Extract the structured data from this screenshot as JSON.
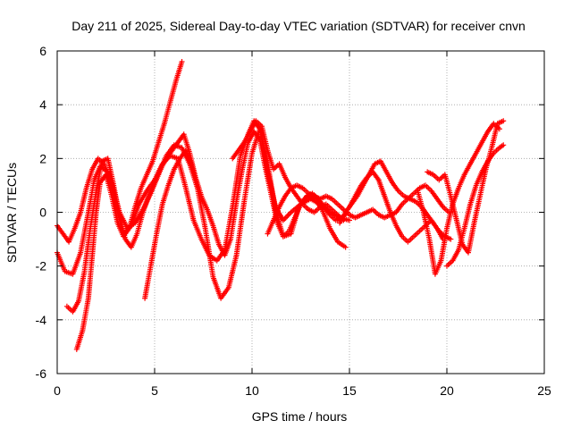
{
  "chart_data": {
    "type": "scatter",
    "title": "Day 211 of 2025, Sidereal Day-to-day VTEC variation (SDTVAR) for receiver cnvn",
    "xlabel": "GPS time / hours",
    "ylabel": "SDTVAR / TECUs",
    "xlim": [
      0,
      25
    ],
    "ylim": [
      -6,
      6
    ],
    "xticks": [
      "0",
      "5",
      "10",
      "15",
      "20",
      "25"
    ],
    "yticks": [
      "-6",
      "-4",
      "-2",
      "0",
      "2",
      "4",
      "6"
    ],
    "grid": true,
    "legend": "none",
    "marker": "plus",
    "series": [
      {
        "color": "#ff0000",
        "x": [
          0.0,
          0.4,
          0.8,
          1.2,
          1.6,
          1.9,
          2.2,
          2.6,
          3.0,
          3.4,
          3.8,
          4.2,
          4.6,
          5.0,
          5.4,
          5.8,
          6.2,
          6.6,
          7.0,
          7.4,
          7.8,
          8.2,
          8.6,
          9.0,
          9.4,
          9.8,
          10.1,
          10.4,
          10.8,
          11.2,
          11.6,
          12.0,
          12.5,
          13.0,
          13.5,
          14.0,
          14.5,
          15.0
        ],
        "y": [
          -1.5,
          -2.2,
          -2.3,
          -1.5,
          0.0,
          1.2,
          1.7,
          1.5,
          0.3,
          -0.8,
          -0.5,
          0.3,
          0.8,
          1.2,
          1.8,
          2.1,
          2.0,
          0.9,
          -0.3,
          -1.0,
          -1.6,
          -1.8,
          -1.4,
          0.2,
          2.1,
          2.9,
          3.4,
          3.1,
          1.5,
          0.2,
          -0.3,
          0.0,
          0.3,
          0.5,
          0.3,
          0.0,
          -0.2,
          -0.3
        ]
      },
      {
        "color": "#ff0000",
        "x": [
          0.0,
          0.3,
          0.6,
          0.9,
          1.2,
          1.5,
          1.8,
          2.1,
          2.4,
          2.8,
          3.2,
          3.6,
          4.0,
          4.4,
          4.8,
          5.2,
          5.6,
          6.0,
          6.4,
          6.8,
          7.2,
          7.6,
          8.0,
          8.4,
          8.8,
          9.2,
          9.6,
          10.0,
          10.4,
          10.8,
          11.2,
          11.6,
          12.0,
          12.4,
          12.8,
          13.2,
          13.6,
          14.0,
          14.4,
          14.8
        ],
        "y": [
          -0.5,
          -0.8,
          -1.1,
          -0.6,
          0.0,
          0.9,
          1.6,
          2.0,
          1.8,
          1.1,
          0.0,
          -0.6,
          -0.4,
          0.1,
          0.7,
          1.4,
          2.1,
          2.5,
          2.4,
          1.8,
          0.9,
          -0.6,
          -2.4,
          -3.2,
          -2.8,
          -1.6,
          0.4,
          2.2,
          3.1,
          1.8,
          0.1,
          -0.9,
          -0.8,
          0.2,
          0.6,
          0.5,
          0.1,
          -0.6,
          -1.1,
          -1.3
        ]
      },
      {
        "color": "#ff0000",
        "x": [
          1.0,
          1.3,
          1.6,
          1.8,
          2.0,
          2.2,
          2.5,
          2.8,
          3.1,
          3.4,
          3.7,
          4.0,
          4.3,
          4.6,
          4.9,
          5.2,
          5.5,
          5.8,
          6.1,
          6.4
        ],
        "y": [
          -5.1,
          -4.4,
          -3.2,
          -1.6,
          0.0,
          1.1,
          1.4,
          0.6,
          -0.4,
          -0.9,
          -0.6,
          0.2,
          0.9,
          1.4,
          1.9,
          2.6,
          3.3,
          4.1,
          4.9,
          5.6
        ]
      },
      {
        "color": "#ff0000",
        "x": [
          0.5,
          0.8,
          1.1,
          1.4,
          1.7,
          2.0,
          2.3,
          2.6,
          2.9,
          3.2,
          3.5,
          3.8,
          4.1,
          4.4,
          4.7,
          5.0,
          5.3,
          5.6,
          5.9,
          6.2,
          6.5,
          6.8,
          7.1,
          7.4,
          7.7,
          8.0,
          8.3,
          8.6,
          8.9,
          9.2,
          9.5,
          9.8,
          10.1,
          10.4,
          10.7,
          11.0,
          11.3,
          11.6,
          11.9,
          12.2,
          12.5,
          12.8,
          13.1,
          13.4,
          13.7,
          14.0,
          14.3,
          14.6,
          14.9
        ],
        "y": [
          -3.5,
          -3.7,
          -3.3,
          -2.2,
          -0.6,
          0.8,
          1.9,
          2.0,
          1.0,
          -0.2,
          -1.0,
          -1.3,
          -0.8,
          0.0,
          0.6,
          1.1,
          1.6,
          2.0,
          2.3,
          2.6,
          2.9,
          2.2,
          1.3,
          0.6,
          0.1,
          -0.5,
          -1.2,
          -1.6,
          -1.0,
          0.4,
          1.6,
          2.6,
          3.0,
          2.7,
          1.6,
          0.6,
          -0.4,
          -0.9,
          -0.7,
          -0.2,
          0.3,
          0.6,
          0.7,
          0.5,
          0.2,
          -0.1,
          -0.3,
          -0.2,
          0.0
        ]
      },
      {
        "color": "#ff0000",
        "x": [
          4.5,
          4.8,
          5.1,
          5.4,
          5.7,
          6.0,
          6.3,
          6.6,
          6.9,
          7.2
        ],
        "y": [
          -3.2,
          -2.0,
          -0.8,
          0.3,
          1.0,
          1.6,
          2.0,
          2.3,
          1.8,
          0.9
        ]
      },
      {
        "color": "#ff0000",
        "x": [
          9.0,
          9.3,
          9.6,
          9.9,
          10.2,
          10.5,
          10.8,
          11.1,
          11.4,
          11.7,
          12.0,
          12.3,
          12.6,
          12.9,
          13.2,
          13.5,
          13.8,
          14.1,
          14.4,
          14.7
        ],
        "y": [
          2.0,
          2.3,
          2.6,
          3.0,
          3.4,
          3.2,
          2.3,
          1.6,
          1.8,
          1.3,
          0.9,
          0.6,
          0.3,
          0.1,
          0.0,
          0.2,
          0.3,
          0.1,
          -0.1,
          -0.3
        ]
      },
      {
        "color": "#ff0000",
        "x": [
          10.8,
          11.1,
          11.4,
          11.7,
          12.0,
          12.3,
          12.6,
          12.9,
          13.2,
          13.5,
          13.8,
          14.1,
          14.4,
          14.7,
          15.0,
          15.3,
          15.6,
          15.9,
          16.2,
          16.5,
          16.8,
          17.1,
          17.4,
          17.7,
          18.0,
          18.3,
          18.6,
          18.9,
          19.2,
          19.5,
          19.8,
          20.1
        ],
        "y": [
          -0.8,
          -0.3,
          0.2,
          0.6,
          0.9,
          1.0,
          0.9,
          0.7,
          0.6,
          0.5,
          0.6,
          0.5,
          0.3,
          0.1,
          -0.1,
          -0.2,
          -0.1,
          0.0,
          0.1,
          -0.1,
          -0.2,
          -0.1,
          0.0,
          0.3,
          0.5,
          0.7,
          0.9,
          1.0,
          0.8,
          0.5,
          0.2,
          0.0
        ]
      },
      {
        "color": "#ff0000",
        "x": [
          14.5,
          14.8,
          15.1,
          15.4,
          15.7,
          16.0,
          16.3,
          16.6,
          16.9,
          17.2,
          17.5,
          17.8,
          18.1,
          18.4,
          18.7,
          19.0,
          19.3,
          19.6,
          19.9,
          20.2
        ],
        "y": [
          -0.4,
          0.0,
          0.3,
          0.6,
          1.0,
          1.4,
          1.8,
          1.9,
          1.5,
          1.1,
          0.8,
          0.6,
          0.5,
          0.4,
          0.2,
          -0.1,
          -0.4,
          -0.7,
          -0.9,
          -1.0
        ]
      },
      {
        "color": "#ff0000",
        "x": [
          15.0,
          15.3,
          15.6,
          15.9,
          16.2,
          16.5,
          16.8,
          17.1,
          17.4,
          17.7,
          18.0,
          18.3,
          18.6,
          18.9,
          19.2,
          19.5,
          19.8
        ],
        "y": [
          0.2,
          0.6,
          1.0,
          1.3,
          1.5,
          1.2,
          0.6,
          0.0,
          -0.5,
          -0.9,
          -1.1,
          -0.9,
          -0.7,
          -0.5,
          -0.3,
          -0.6,
          -1.0
        ]
      },
      {
        "color": "#ff0000",
        "x": [
          18.5,
          18.8,
          19.1,
          19.4,
          19.7,
          20.0,
          20.3,
          20.6,
          20.9,
          21.2,
          21.5,
          21.8,
          22.1,
          22.4,
          22.7
        ],
        "y": [
          0.8,
          0.0,
          -1.0,
          -2.3,
          -1.8,
          -0.6,
          0.3,
          0.9,
          1.4,
          1.8,
          2.2,
          2.6,
          3.0,
          3.3,
          3.1
        ]
      },
      {
        "color": "#ff0000",
        "x": [
          19.0,
          19.3,
          19.6,
          19.9,
          20.2,
          20.5,
          20.8,
          21.1,
          21.4,
          21.7,
          22.0,
          22.3,
          22.6,
          22.9
        ],
        "y": [
          1.5,
          1.4,
          1.2,
          1.4,
          0.6,
          -0.3,
          -1.2,
          -1.5,
          -0.4,
          0.6,
          1.6,
          2.4,
          3.3,
          3.4
        ]
      },
      {
        "color": "#ff0000",
        "x": [
          20.0,
          20.3,
          20.6,
          20.9,
          21.2,
          21.5,
          21.8,
          22.1,
          22.4,
          22.7,
          22.9
        ],
        "y": [
          -2.0,
          -1.8,
          -1.4,
          -0.6,
          0.3,
          1.0,
          1.5,
          1.9,
          2.2,
          2.4,
          2.5
        ]
      }
    ]
  }
}
